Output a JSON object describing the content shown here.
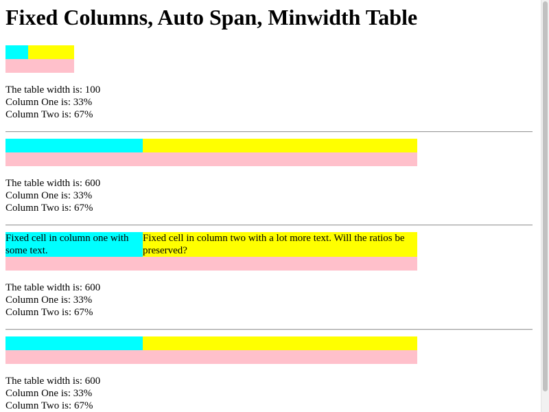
{
  "title": "Fixed Columns, Auto Span, Minwidth Table",
  "colors": {
    "column_one": "#00ffff",
    "column_two": "#ffff00",
    "span_row": "#ffc0cb",
    "separator": "#a0a0a0"
  },
  "sections": [
    {
      "info": [
        "The table width is: 100",
        "Column One is: 33%",
        "Column Two is: 67%"
      ]
    },
    {
      "info": [
        "The table width is: 600",
        "Column One is: 33%",
        "Column Two is: 67%"
      ]
    },
    {
      "cell_one": "Fixed cell in column one with some text.",
      "cell_two": "Fixed cell in column two with a lot more text. Will the ratios be preserved?",
      "info": [
        "The table width is: 600",
        "Column One is: 33%",
        "Column Two is: 67%"
      ]
    },
    {
      "info": [
        "The table width is: 600",
        "Column One is: 33%",
        "Column Two is: 67%"
      ]
    }
  ]
}
